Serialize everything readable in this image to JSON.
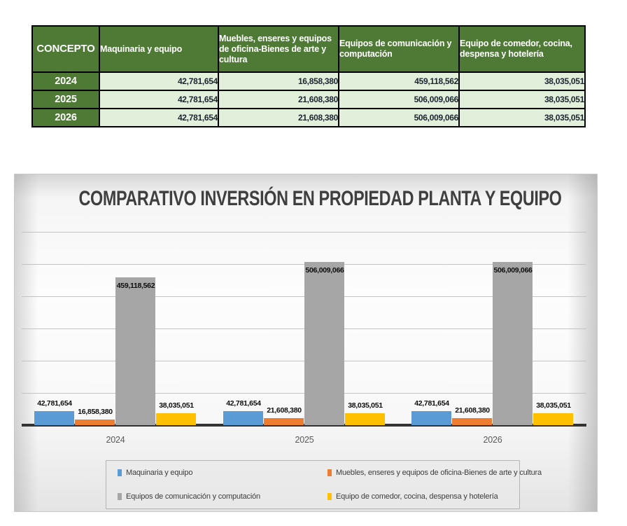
{
  "table": {
    "header": [
      "CONCEPTO",
      "Maquinaria y equipo",
      "Muebles, enseres y equipos de oficina-Bienes de arte y cultura",
      "Equipos de comunicación y computación",
      "Equipo de comedor, cocina, despensa y hotelería"
    ],
    "rows": [
      {
        "year": "2024",
        "values": [
          "42,781,654",
          "16,858,380",
          "459,118,562",
          "38,035,051"
        ]
      },
      {
        "year": "2025",
        "values": [
          "42,781,654",
          "21,608,380",
          "506,009,066",
          "38,035,051"
        ]
      },
      {
        "year": "2026",
        "values": [
          "42,781,654",
          "21,608,380",
          "506,009,066",
          "38,035,051"
        ]
      }
    ],
    "header_bg": "#4e7a35",
    "value_bg": "#e2efda"
  },
  "chart_data": {
    "type": "bar",
    "title": "COMPARATIVO INVERSIÓN EN PROPIEDAD PLANTA Y EQUIPO",
    "categories": [
      "2024",
      "2025",
      "2026"
    ],
    "series": [
      {
        "name": "Maquinaria y equipo",
        "color": "#5B9BD5",
        "values": [
          42781654,
          42781654,
          42781654
        ]
      },
      {
        "name": "Muebles, enseres y equipos de oficina-Bienes de arte y cultura",
        "color": "#ED7D31",
        "values": [
          16858380,
          21608380,
          21608380
        ]
      },
      {
        "name": "Equipos de comunicación y computación",
        "color": "#A6A6A6",
        "values": [
          459118562,
          506009066,
          506009066
        ]
      },
      {
        "name": "Equipo de comedor, cocina, despensa y hotelería",
        "color": "#FFC000",
        "values": [
          38035051,
          38035051,
          38035051
        ]
      }
    ],
    "ylim": [
      0,
      600000000
    ],
    "gridline_step": 100000000,
    "y_axis_labels_visible": false,
    "grid": true,
    "legend_position": "bottom",
    "data_labels": true
  }
}
